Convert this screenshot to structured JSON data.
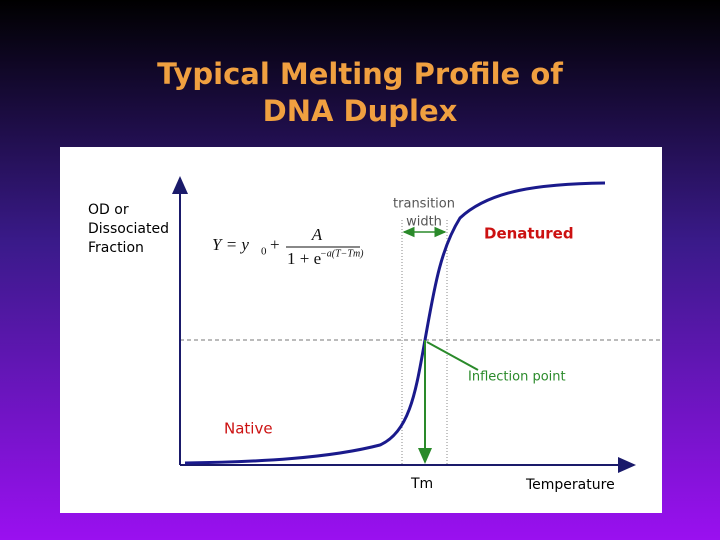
{
  "title": [
    "Typical Melting Profile of",
    "DNA Duplex"
  ],
  "y_axis_label": [
    "OD or",
    "Dissociated",
    "Fraction"
  ],
  "equation": {
    "lhs": "Y = y",
    "sub": "0",
    "plus": "+",
    "numerator": "A",
    "denominator": "1 + e",
    "exponent": "−a(T−Tm)"
  },
  "annotations": {
    "transition_width": [
      "transition",
      "width"
    ],
    "denatured": "Denatured",
    "inflection_point": "Inflection point",
    "native": "Native",
    "tm": "Tm",
    "x_axis_label": "Temperature"
  }
}
